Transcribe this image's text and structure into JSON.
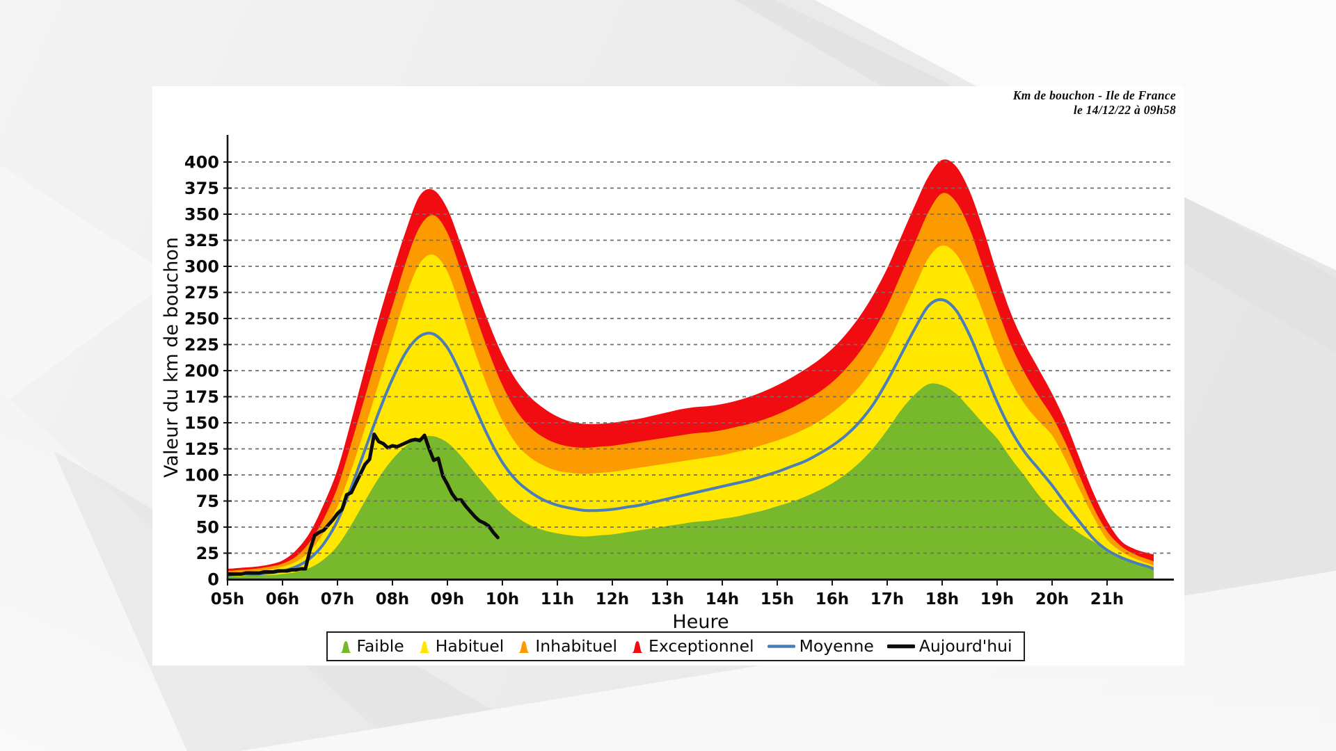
{
  "header": {
    "title_line1": "Km de bouchon - Ile de France",
    "title_line2": "le 14/12/22 à 09h58"
  },
  "chart_data": {
    "type": "area",
    "title": "Km de bouchon - Ile de France",
    "subtitle": "le 14/12/22 à 09h58",
    "xlabel": "Heure",
    "ylabel": "Valeur du  km de bouchon",
    "legend_position": "bottom",
    "grid": "horizontal-dashed",
    "xlim": [
      4.85,
      21.95
    ],
    "ylim": [
      0,
      420
    ],
    "yticks": [
      0,
      25,
      50,
      75,
      100,
      125,
      150,
      175,
      200,
      225,
      250,
      275,
      300,
      325,
      350,
      375,
      400
    ],
    "xticks": [
      {
        "value": 5,
        "label": "05h"
      },
      {
        "value": 6,
        "label": "06h"
      },
      {
        "value": 7,
        "label": "07h"
      },
      {
        "value": 8,
        "label": "08h"
      },
      {
        "value": 9,
        "label": "09h"
      },
      {
        "value": 10,
        "label": "10h"
      },
      {
        "value": 11,
        "label": "11h"
      },
      {
        "value": 12,
        "label": "12h"
      },
      {
        "value": 13,
        "label": "13h"
      },
      {
        "value": 14,
        "label": "14h"
      },
      {
        "value": 15,
        "label": "15h"
      },
      {
        "value": 16,
        "label": "16h"
      },
      {
        "value": 17,
        "label": "17h"
      },
      {
        "value": 18,
        "label": "18h"
      },
      {
        "value": 19,
        "label": "19h"
      },
      {
        "value": 20,
        "label": "20h"
      },
      {
        "value": 21,
        "label": "21h"
      }
    ],
    "x": [
      4.85,
      5,
      5.25,
      5.5,
      5.75,
      6,
      6.25,
      6.5,
      6.75,
      7,
      7.25,
      7.5,
      7.75,
      8,
      8.25,
      8.5,
      8.75,
      9,
      9.25,
      9.5,
      9.75,
      10,
      10.25,
      10.5,
      10.75,
      11,
      11.25,
      11.5,
      11.75,
      12,
      12.25,
      12.5,
      12.75,
      13,
      13.25,
      13.5,
      13.75,
      14,
      14.25,
      14.5,
      14.75,
      15,
      15.25,
      15.5,
      15.75,
      16,
      16.25,
      16.5,
      16.75,
      17,
      17.25,
      17.5,
      17.75,
      18,
      18.25,
      18.5,
      18.75,
      19,
      19.25,
      19.5,
      19.75,
      20,
      20.25,
      20.5,
      20.75,
      21,
      21.25,
      21.5,
      21.75,
      21.85
    ],
    "series": [
      {
        "name": "Faible",
        "type": "band",
        "color": "#77b82c",
        "values": [
          3,
          3,
          3,
          4,
          4,
          5,
          7,
          11,
          19,
          32,
          52,
          75,
          97,
          115,
          128,
          136,
          137,
          131,
          118,
          102,
          86,
          71,
          60,
          52,
          47,
          44,
          42,
          41,
          42,
          43,
          45,
          47,
          49,
          51,
          53,
          55,
          56,
          58,
          60,
          63,
          66,
          70,
          74,
          79,
          85,
          92,
          101,
          112,
          126,
          143,
          162,
          177,
          187,
          186,
          178,
          164,
          149,
          135,
          116,
          99,
          81,
          66,
          54,
          44,
          36,
          28,
          22,
          17,
          12,
          9
        ]
      },
      {
        "name": "Habituel",
        "type": "band",
        "color": "#ffe700",
        "values": [
          6,
          6,
          7,
          8,
          9,
          12,
          17,
          27,
          45,
          70,
          105,
          145,
          188,
          230,
          272,
          303,
          311,
          295,
          258,
          218,
          182,
          152,
          130,
          117,
          109,
          104,
          102,
          101,
          102,
          103,
          105,
          107,
          109,
          111,
          113,
          115,
          117,
          119,
          122,
          125,
          129,
          133,
          138,
          144,
          151,
          160,
          171,
          185,
          203,
          225,
          252,
          280,
          308,
          320,
          312,
          288,
          255,
          220,
          190,
          168,
          152,
          138,
          114,
          86,
          60,
          38,
          27,
          20,
          15,
          13
        ]
      },
      {
        "name": "Inhabituel",
        "type": "band",
        "color": "#fb9b00",
        "values": [
          8,
          8,
          9,
          10,
          12,
          15,
          22,
          36,
          58,
          88,
          130,
          175,
          220,
          262,
          305,
          338,
          349,
          332,
          295,
          255,
          218,
          186,
          162,
          146,
          136,
          130,
          127,
          126,
          127,
          128,
          130,
          132,
          134,
          136,
          138,
          140,
          141,
          143,
          146,
          149,
          153,
          158,
          164,
          171,
          179,
          189,
          202,
          218,
          238,
          262,
          292,
          322,
          352,
          370,
          362,
          336,
          298,
          260,
          225,
          198,
          176,
          156,
          130,
          99,
          69,
          46,
          32,
          24,
          19,
          17
        ]
      },
      {
        "name": "Exceptionnel",
        "type": "band",
        "color": "#f10c11",
        "values": [
          10,
          10,
          11,
          12,
          14,
          18,
          28,
          45,
          72,
          105,
          152,
          202,
          250,
          294,
          335,
          368,
          373,
          355,
          320,
          282,
          246,
          215,
          191,
          175,
          164,
          156,
          151,
          149,
          149,
          150,
          152,
          154,
          157,
          160,
          163,
          165,
          166,
          168,
          171,
          175,
          180,
          186,
          193,
          201,
          210,
          221,
          235,
          252,
          273,
          298,
          328,
          358,
          386,
          402,
          396,
          372,
          335,
          293,
          255,
          226,
          202,
          178,
          150,
          116,
          83,
          56,
          37,
          29,
          25,
          24
        ]
      },
      {
        "name": "Moyenne",
        "type": "line",
        "color": "#4a7ebb",
        "values": [
          4,
          4,
          5,
          5,
          6,
          8,
          12,
          20,
          34,
          56,
          88,
          124,
          160,
          192,
          218,
          233,
          235,
          222,
          196,
          165,
          136,
          112,
          95,
          84,
          76,
          71,
          68,
          66,
          66,
          67,
          69,
          71,
          74,
          77,
          80,
          83,
          86,
          89,
          92,
          95,
          99,
          103,
          108,
          113,
          120,
          128,
          138,
          151,
          168,
          190,
          215,
          240,
          262,
          268,
          258,
          234,
          202,
          170,
          143,
          122,
          106,
          90,
          72,
          55,
          39,
          28,
          21,
          16,
          12,
          10
        ]
      },
      {
        "name": "Aujourd'hui",
        "type": "line",
        "color": "#0b0b0b",
        "x": [
          5,
          5.083,
          5.167,
          5.25,
          5.333,
          5.417,
          5.5,
          5.583,
          5.667,
          5.75,
          5.833,
          5.917,
          6,
          6.083,
          6.167,
          6.25,
          6.333,
          6.417,
          6.5,
          6.583,
          6.667,
          6.75,
          6.833,
          6.917,
          7,
          7.083,
          7.167,
          7.25,
          7.333,
          7.417,
          7.5,
          7.583,
          7.667,
          7.75,
          7.833,
          7.917,
          8,
          8.083,
          8.167,
          8.25,
          8.333,
          8.417,
          8.5,
          8.583,
          8.667,
          8.75,
          8.833,
          8.917,
          9,
          9.083,
          9.167,
          9.25,
          9.333,
          9.417,
          9.5,
          9.583,
          9.667,
          9.75,
          9.833,
          9.917
        ],
        "values": [
          5,
          5,
          5,
          5,
          6,
          6,
          6,
          6,
          7,
          7,
          7,
          8,
          8,
          8,
          9,
          9,
          10,
          10,
          28,
          42,
          45,
          47,
          52,
          57,
          63,
          67,
          81,
          83,
          92,
          101,
          110,
          115,
          139,
          132,
          130,
          126,
          128,
          127,
          129,
          131,
          133,
          134,
          133,
          138,
          125,
          114,
          116,
          99,
          91,
          82,
          76,
          76,
          70,
          65,
          60,
          56,
          54,
          51,
          45,
          40
        ]
      }
    ],
    "colors": {
      "grid": "#6f6f6f",
      "axis": "#141414",
      "panel_background": "#ffffff"
    }
  }
}
